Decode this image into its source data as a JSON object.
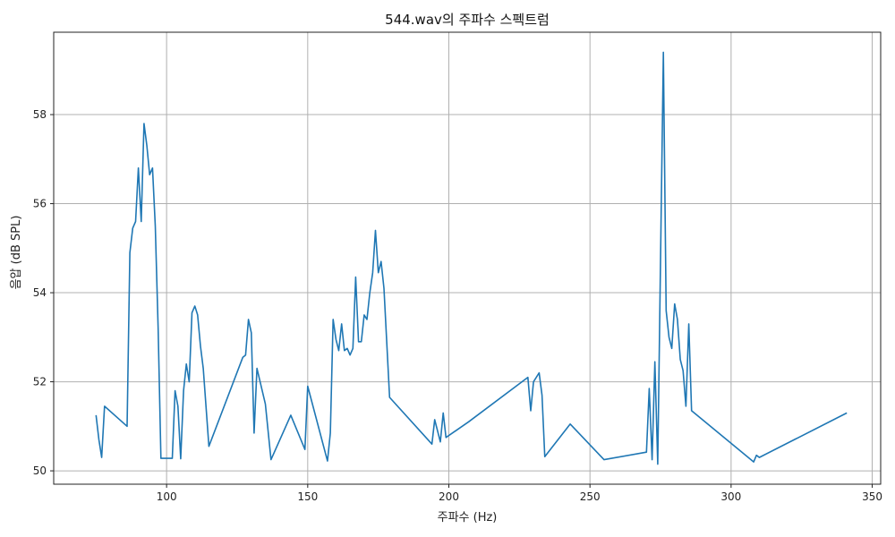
{
  "chart_data": {
    "type": "line",
    "title": "544.wav의 주파수 스펙트럼",
    "xlabel": "주파수 (Hz)",
    "ylabel": "음압 (dB SPL)",
    "xlim": [
      60,
      353
    ],
    "ylim": [
      49.7,
      59.85
    ],
    "xticks": [
      100,
      150,
      200,
      250,
      300,
      350
    ],
    "yticks": [
      50,
      52,
      54,
      56,
      58
    ],
    "grid": true,
    "series": [
      {
        "name": "spectrum",
        "color": "#1f77b4",
        "x": [
          75,
          76,
          77,
          78,
          86,
          87,
          88,
          89,
          90,
          91,
          92,
          93,
          94,
          95,
          96,
          97,
          98,
          102,
          103,
          104,
          105,
          106,
          107,
          108,
          109,
          110,
          111,
          112,
          113,
          115,
          127,
          128,
          129,
          130,
          131,
          132,
          135,
          137,
          144,
          149,
          150,
          157,
          158,
          159,
          160,
          161,
          162,
          163,
          164,
          165,
          166,
          167,
          168,
          169,
          170,
          171,
          172,
          173,
          174,
          175,
          176,
          177,
          179,
          194,
          195,
          197,
          198,
          199,
          207,
          228,
          229,
          230,
          232,
          233,
          234,
          243,
          255,
          270,
          271,
          272,
          273,
          274,
          276,
          277,
          278,
          279,
          280,
          281,
          282,
          283,
          284,
          285,
          286,
          308,
          309,
          310,
          341
        ],
        "values": [
          51.25,
          50.7,
          50.3,
          51.45,
          51.0,
          54.9,
          55.45,
          55.6,
          56.8,
          55.6,
          57.8,
          57.3,
          56.65,
          56.8,
          55.5,
          53.2,
          50.28,
          50.28,
          51.8,
          51.45,
          50.27,
          51.8,
          52.4,
          52.0,
          53.55,
          53.7,
          53.5,
          52.8,
          52.3,
          50.55,
          52.55,
          52.6,
          53.4,
          53.1,
          50.85,
          52.3,
          51.5,
          50.25,
          51.25,
          50.48,
          51.9,
          50.22,
          50.85,
          53.4,
          52.95,
          52.7,
          53.3,
          52.7,
          52.75,
          52.6,
          52.75,
          54.35,
          52.9,
          52.9,
          53.5,
          53.4,
          54.0,
          54.45,
          55.4,
          54.45,
          54.7,
          54.1,
          51.65,
          50.6,
          51.15,
          50.65,
          51.3,
          50.75,
          51.1,
          52.1,
          51.35,
          52.0,
          52.2,
          51.7,
          50.32,
          51.05,
          50.25,
          50.42,
          51.85,
          50.25,
          52.45,
          50.15,
          59.4,
          53.6,
          53.0,
          52.75,
          53.75,
          53.4,
          52.5,
          52.25,
          51.45,
          53.3,
          51.35,
          50.2,
          50.35,
          50.3,
          51.3
        ]
      }
    ]
  }
}
